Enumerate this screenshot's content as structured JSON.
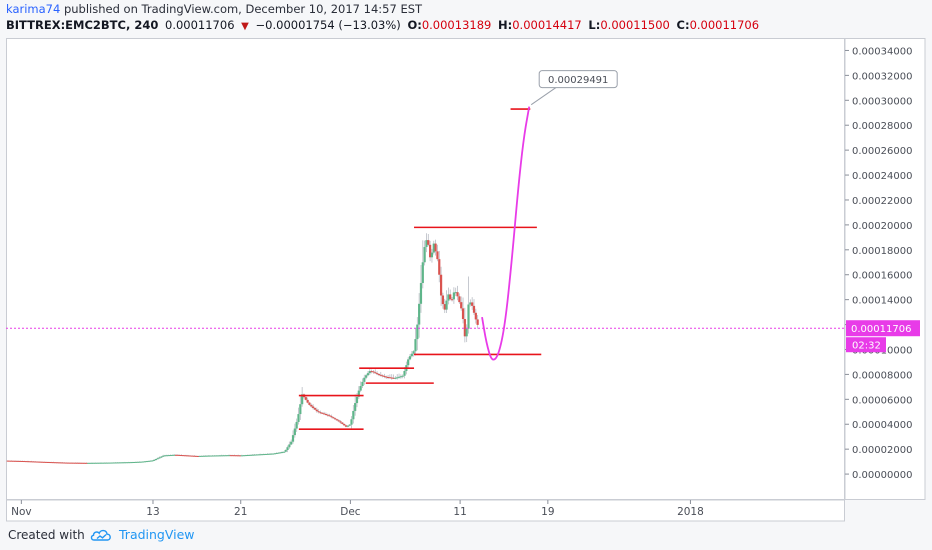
{
  "header": {
    "author": "karima74",
    "published_text": "published on TradingView.com, December 10, 2017 14:57 EST",
    "symbol": "BITTREX:EMC2BTC, 240",
    "last": "0.00011706",
    "change": "−0.00001754 (−13.03%)",
    "open_label": "O:",
    "open": "0.00013189",
    "high_label": "H:",
    "high": "0.00014417",
    "low_label": "L:",
    "low": "0.00011500",
    "close_label": "C:",
    "close": "0.00011706"
  },
  "footer": {
    "created_with": "Created with",
    "brand": "TradingView"
  },
  "colors": {
    "up": "#5fb58a",
    "down": "#d9534f",
    "level": "#e8141b",
    "projection": "#e83be8",
    "price_line": "#e83be8",
    "accent": "#2962ff"
  },
  "chart_data": {
    "type": "candlestick",
    "title": "",
    "xlabel": "",
    "ylabel": "",
    "ylim": [
      -2e-05,
      0.00035
    ],
    "y_ticks": [
      "0.00000000",
      "0.00002000",
      "0.00004000",
      "0.00006000",
      "0.00008000",
      "0.00010000",
      "0.00012000",
      "0.00014000",
      "0.00016000",
      "0.00018000",
      "0.00020000",
      "0.00022000",
      "0.00024000",
      "0.00026000",
      "0.00028000",
      "0.00030000",
      "0.00032000",
      "0.00034000"
    ],
    "x_ticks": [
      {
        "label": "Nov",
        "day": 0
      },
      {
        "label": "13",
        "day": 12
      },
      {
        "label": "21",
        "day": 20
      },
      {
        "label": "Dec",
        "day": 30
      },
      {
        "label": "11",
        "day": 40
      },
      {
        "label": "19",
        "day": 48
      },
      {
        "label": "2018",
        "day": 61
      }
    ],
    "x_range_days": [
      -1.4,
      75
    ],
    "last_price": 0.00011706,
    "last_price_label": "0.00011706",
    "countdown": "02:32",
    "projection_target_label": "0.00029491",
    "price_path": [
      [
        -1.4,
        1.08e-05
      ],
      [
        0,
        1.05e-05
      ],
      [
        2,
        9.8e-06
      ],
      [
        4,
        9.2e-06
      ],
      [
        6,
        9e-06
      ],
      [
        8,
        9.2e-06
      ],
      [
        10,
        9.6e-06
      ],
      [
        11,
        1e-05
      ],
      [
        12,
        1.1e-05
      ],
      [
        13,
        1.5e-05
      ],
      [
        14,
        1.55e-05
      ],
      [
        15,
        1.5e-05
      ],
      [
        16,
        1.45e-05
      ],
      [
        17,
        1.48e-05
      ],
      [
        18,
        1.5e-05
      ],
      [
        19,
        1.52e-05
      ],
      [
        20,
        1.5e-05
      ],
      [
        21,
        1.55e-05
      ],
      [
        22,
        1.6e-05
      ],
      [
        23,
        1.65e-05
      ],
      [
        24,
        1.8e-05
      ],
      [
        24.6,
        2.6e-05
      ],
      [
        25.2,
        4.5e-05
      ],
      [
        25.6,
        6.4e-05
      ],
      [
        26.2,
        5.6e-05
      ],
      [
        27,
        5e-05
      ],
      [
        28,
        4.7e-05
      ],
      [
        29,
        4.2e-05
      ],
      [
        29.6,
        3.8e-05
      ],
      [
        30,
        4e-05
      ],
      [
        30.4,
        5.6e-05
      ],
      [
        30.8,
        6.8e-05
      ],
      [
        31.3,
        7.8e-05
      ],
      [
        31.8,
        8.3e-05
      ],
      [
        32.5,
        8e-05
      ],
      [
        33.2,
        7.8e-05
      ],
      [
        34,
        7.7e-05
      ],
      [
        34.8,
        7.9e-05
      ],
      [
        35.3,
        9.3e-05
      ],
      [
        35.8,
        9.9e-05
      ],
      [
        36.1,
        0.00012
      ],
      [
        36.4,
        0.00015
      ],
      [
        36.7,
        0.00018
      ],
      [
        37.0,
        0.00019
      ],
      [
        37.3,
        0.000172
      ],
      [
        37.6,
        0.000185
      ],
      [
        38.0,
        0.00017
      ],
      [
        38.3,
        0.00014
      ],
      [
        38.6,
        0.000132
      ],
      [
        38.9,
        0.000145
      ],
      [
        39.2,
        0.000138
      ],
      [
        39.5,
        0.000148
      ],
      [
        39.8,
        0.000142
      ],
      [
        40.2,
        0.00013
      ],
      [
        40.5,
        0.000105
      ],
      [
        40.8,
        0.00014
      ],
      [
        41.1,
        0.000135
      ],
      [
        41.4,
        0.000125
      ],
      [
        41.7,
        0.0001171
      ]
    ],
    "levels": [
      {
        "name": "support-1",
        "y": 3.6e-05,
        "x0": 25.3,
        "x1": 31.2
      },
      {
        "name": "resistance-1",
        "y": 6.3e-05,
        "x0": 25.3,
        "x1": 31.2
      },
      {
        "name": "support-2",
        "y": 7.3e-05,
        "x0": 31.4,
        "x1": 37.6
      },
      {
        "name": "resistance-2",
        "y": 8.5e-05,
        "x0": 30.8,
        "x1": 35.8
      },
      {
        "name": "support-3",
        "y": 9.6e-05,
        "x0": 35.8,
        "x1": 47.4
      },
      {
        "name": "resistance-3",
        "y": 0.000198,
        "x0": 35.8,
        "x1": 47.0
      },
      {
        "name": "target",
        "y": 0.000293,
        "x0": 44.6,
        "x1": 46.4
      }
    ],
    "projection": [
      [
        42.0,
        0.000126
      ],
      [
        42.4,
        0.000105
      ],
      [
        42.9,
        9e-05
      ],
      [
        43.5,
        9.5e-05
      ],
      [
        44.1,
        0.00012
      ],
      [
        44.7,
        0.00017
      ],
      [
        45.3,
        0.00023
      ],
      [
        45.8,
        0.00027
      ],
      [
        46.3,
        0.0002949
      ]
    ]
  }
}
